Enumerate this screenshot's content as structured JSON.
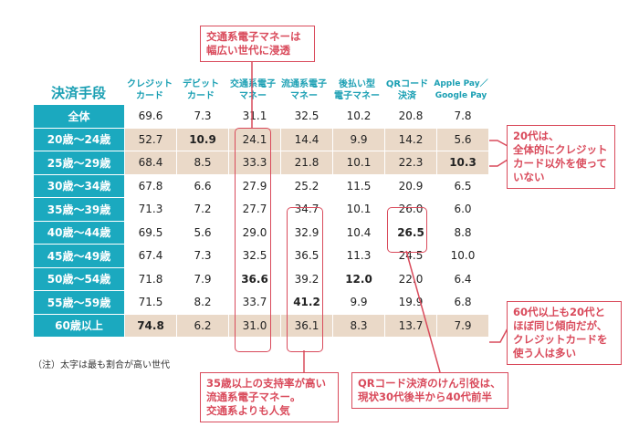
{
  "table": {
    "corner": "決済手段",
    "headers": [
      "クレジット\nカード",
      "デビット\nカード",
      "交通系電子\nマネー",
      "流通系電子\nマネー",
      "後払い型\n電子マネー",
      "QRコード\n決済",
      "Apple Pay／\nGoogle Pay"
    ],
    "rows": [
      {
        "label": "全体",
        "values": [
          "69.6",
          "7.3",
          "31.1",
          "32.5",
          "10.2",
          "20.8",
          "7.8"
        ]
      },
      {
        "label": "20歳～24歳",
        "values": [
          "52.7",
          "10.9",
          "24.1",
          "14.4",
          "9.9",
          "14.2",
          "5.6"
        ]
      },
      {
        "label": "25歳～29歳",
        "values": [
          "68.4",
          "8.5",
          "33.3",
          "21.8",
          "10.1",
          "22.3",
          "10.3"
        ]
      },
      {
        "label": "30歳～34歳",
        "values": [
          "67.8",
          "6.6",
          "27.9",
          "25.2",
          "11.5",
          "20.9",
          "6.5"
        ]
      },
      {
        "label": "35歳～39歳",
        "values": [
          "71.3",
          "7.2",
          "27.7",
          "34.7",
          "10.1",
          "26.0",
          "6.0"
        ]
      },
      {
        "label": "40歳～44歳",
        "values": [
          "69.5",
          "5.6",
          "29.0",
          "32.9",
          "10.4",
          "26.5",
          "8.8"
        ]
      },
      {
        "label": "45歳～49歳",
        "values": [
          "67.4",
          "7.3",
          "32.5",
          "36.5",
          "11.3",
          "24.5",
          "10.0"
        ]
      },
      {
        "label": "50歳～54歳",
        "values": [
          "71.8",
          "7.9",
          "36.6",
          "39.2",
          "12.0",
          "22.0",
          "6.4"
        ]
      },
      {
        "label": "55歳～59歳",
        "values": [
          "71.5",
          "8.2",
          "33.7",
          "41.2",
          "9.9",
          "19.9",
          "6.8"
        ]
      },
      {
        "label": "60歳以上",
        "values": [
          "74.8",
          "6.2",
          "31.0",
          "36.1",
          "8.3",
          "13.7",
          "7.9"
        ]
      }
    ]
  },
  "note": "（注）太字は最も割合が高い世代",
  "callouts": {
    "top": "交通系電子マネーは\n幅広い世代に浸透",
    "right_top": "20代は、\n全体的にクレジット\nカード以外を使って\nいない",
    "right_bottom": "60代以上も20代と\nほぼ同じ傾向だが、\nクレジットカードを\n使う人は多い",
    "bottom_left": "35歳以上の支持率が高い\n流通系電子マネー。\n交通系よりも人気",
    "bottom_right": "QRコード決済のけん引役は、\n現状30代後半から40代前半"
  },
  "colors": {
    "teal": "#1ba9bf",
    "beige": "#ead9c8",
    "red": "#d94a5b"
  }
}
